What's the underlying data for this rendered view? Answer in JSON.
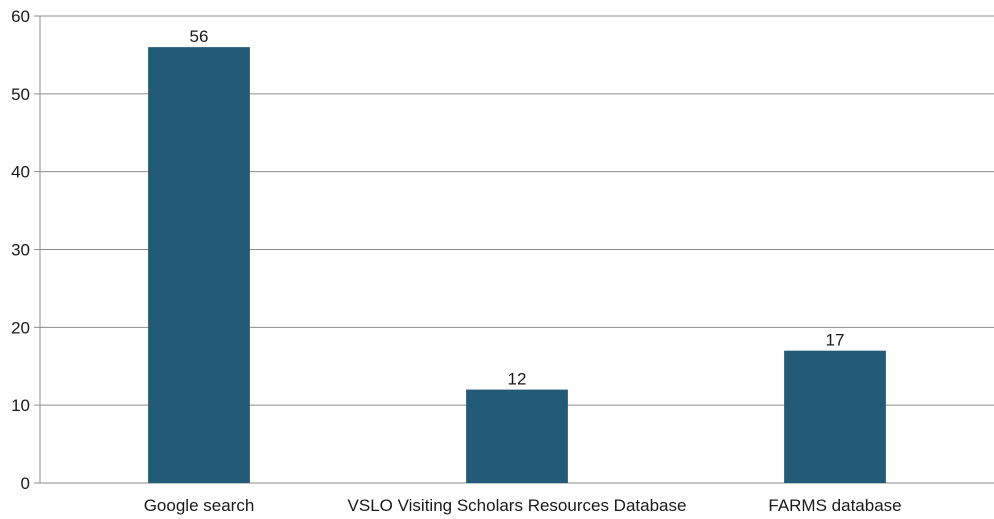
{
  "chart_data": {
    "type": "bar",
    "categories": [
      "Google search",
      "VSLO Visiting Scholars Resources Database",
      "FARMS database"
    ],
    "values": [
      56,
      12,
      17
    ],
    "data_labels": [
      "56",
      "12",
      "17"
    ],
    "ylim": [
      0,
      60
    ],
    "yticks": [
      0,
      10,
      20,
      30,
      40,
      50,
      60
    ],
    "title": "",
    "xlabel": "",
    "ylabel": "",
    "grid": true,
    "legend": "none",
    "bar_color": "#235a78",
    "grid_color": "#8c8c8c"
  }
}
